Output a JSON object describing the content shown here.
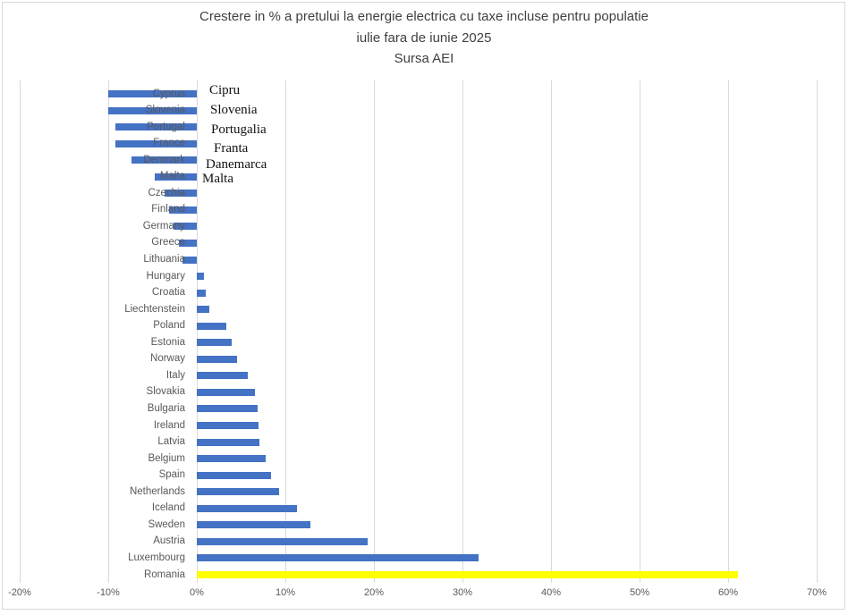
{
  "title": {
    "line1": "Crestere in % a pretului la energie electrica cu taxe incluse pentru populatie",
    "line2": "iulie fara de iunie 2025",
    "line3": "Sursa AEI"
  },
  "annotation": {
    "lines": [
      "Cipru",
      "Slovenia",
      "Portugalia",
      "Franta",
      "Danemarca",
      "Malta"
    ]
  },
  "chart_data": {
    "type": "bar",
    "orientation": "horizontal",
    "title": "Crestere in % a pretului la energie electrica cu taxe incluse pentru populatie iulie fara de iunie 2025 Sursa AEI",
    "categories": [
      "Cyprus",
      "Slovenia",
      "Portugal",
      "France",
      "Denmark",
      "Malta",
      "Czechia",
      "Finland",
      "Germany",
      "Greece",
      "Lithuania",
      "Hungary",
      "Croatia",
      "Liechtenstein",
      "Poland",
      "Estonia",
      "Norway",
      "Italy",
      "Slovakia",
      "Bulgaria",
      "Ireland",
      "Latvia",
      "Belgium",
      "Spain",
      "Netherlands",
      "Iceland",
      "Sweden",
      "Austria",
      "Luxembourg",
      "Romania"
    ],
    "values": [
      -10.0,
      -10.0,
      -9.2,
      -9.2,
      -7.4,
      -4.7,
      -3.6,
      -3.1,
      -2.6,
      -2.0,
      -1.6,
      0.8,
      1.0,
      1.4,
      3.3,
      3.9,
      4.5,
      5.8,
      6.6,
      6.9,
      7.0,
      7.1,
      7.8,
      8.4,
      9.3,
      11.3,
      12.8,
      19.3,
      31.8,
      61.1
    ],
    "unit": "%",
    "xlim": [
      -20,
      70
    ],
    "x_tick_step": 10,
    "x_tick_labels": [
      "-20%",
      "-10%",
      "0%",
      "10%",
      "20%",
      "30%",
      "40%",
      "50%",
      "60%",
      "70%"
    ],
    "grid": true,
    "legend": false,
    "bar_color": "#4472C4",
    "highlight_category": "Romania",
    "highlight_color": "#FFFF00"
  }
}
